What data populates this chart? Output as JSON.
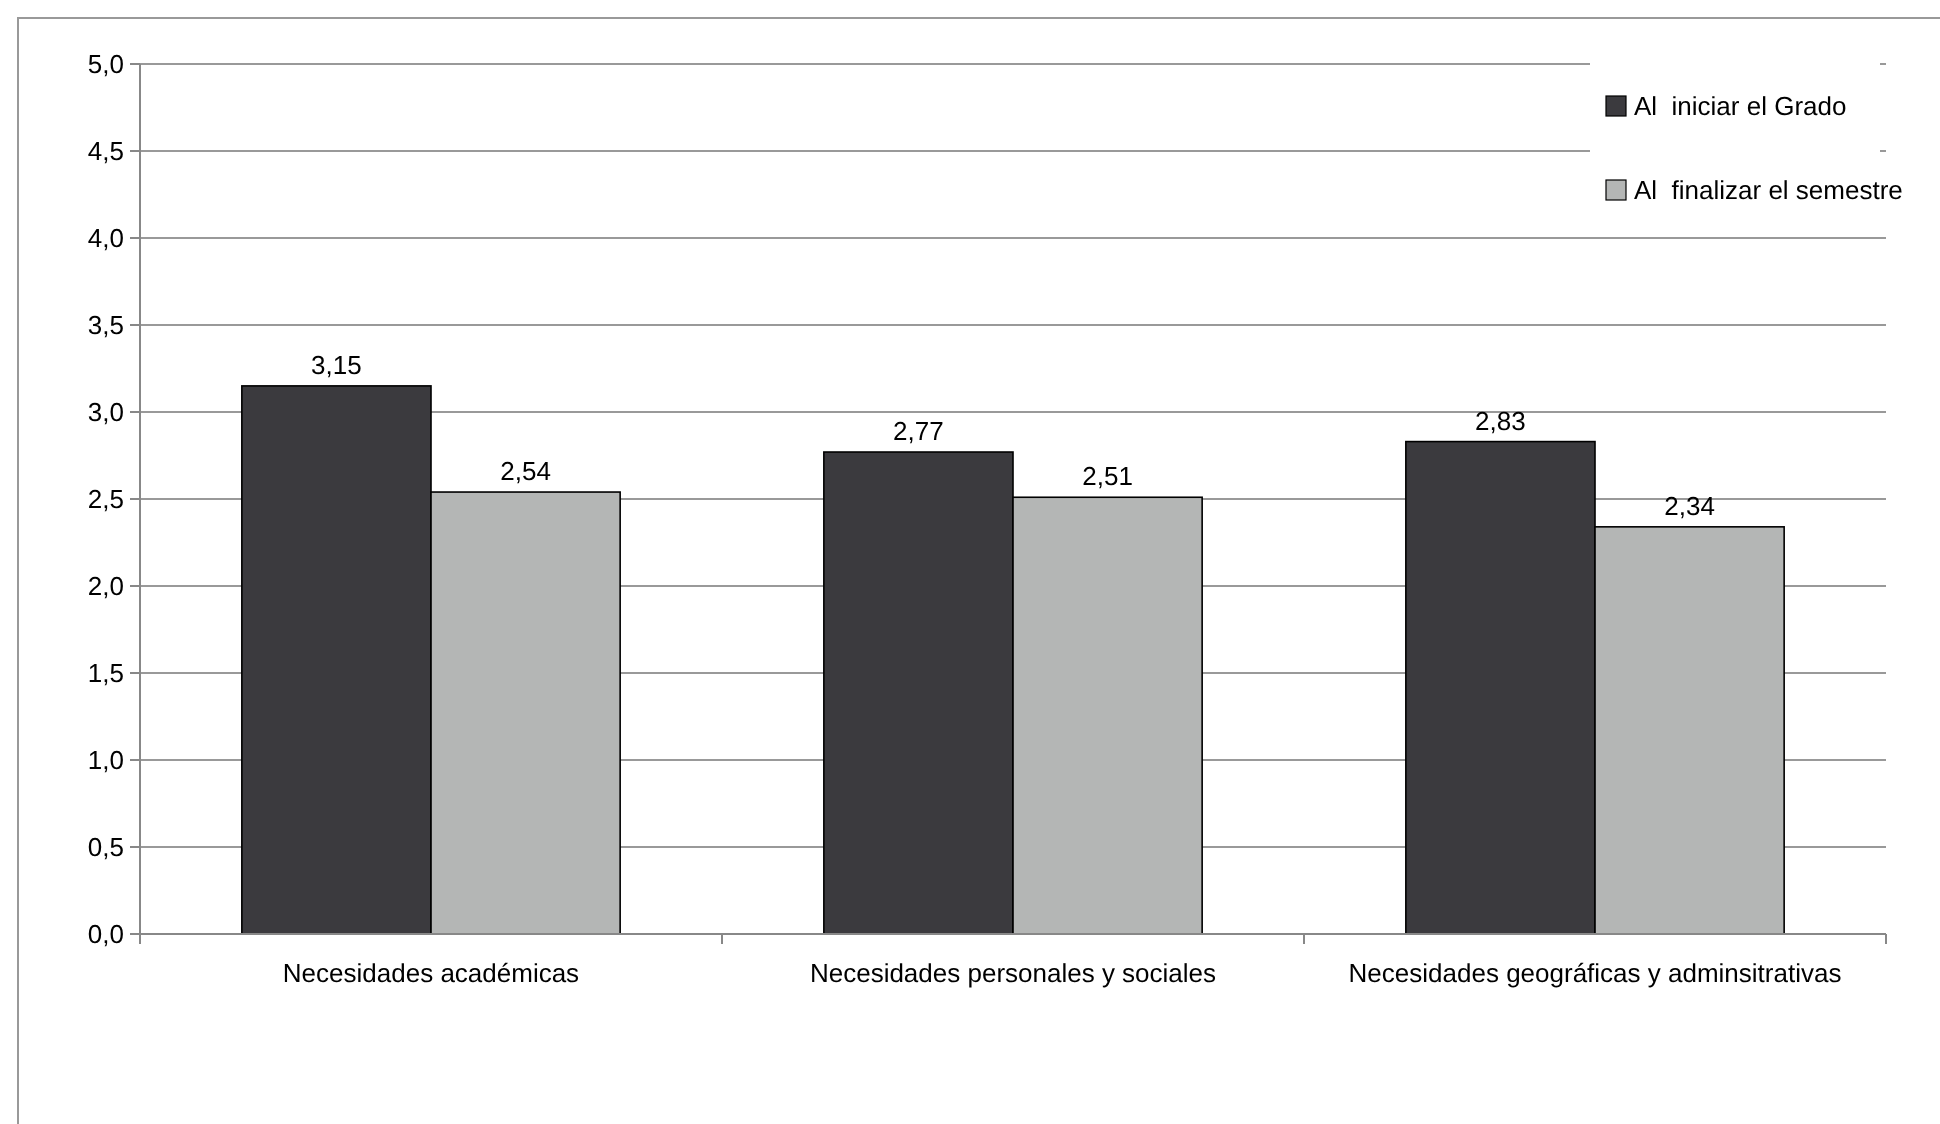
{
  "chart_data": {
    "type": "bar",
    "categories": [
      "Necesidades académicas",
      "Necesidades personales y sociales",
      "Necesidades geográficas y adminsitrativas"
    ],
    "series": [
      {
        "name": "Al  iniciar el Grado",
        "color": "#3b3a3e",
        "values": [
          3.15,
          2.77,
          2.83
        ],
        "value_labels": [
          "3,15",
          "2,77",
          "2,83"
        ]
      },
      {
        "name": "Al  finalizar el semestre",
        "color": "#b4b6b5",
        "values": [
          2.54,
          2.51,
          2.34
        ],
        "value_labels": [
          "2,54",
          "2,51",
          "2,34"
        ]
      }
    ],
    "ylim": [
      0,
      5
    ],
    "yticks": [
      {
        "value": 0,
        "label": "0,0"
      },
      {
        "value": 0.5,
        "label": "0,5"
      },
      {
        "value": 1,
        "label": "1,0"
      },
      {
        "value": 1.5,
        "label": "1,5"
      },
      {
        "value": 2,
        "label": "2,0"
      },
      {
        "value": 2.5,
        "label": "2,5"
      },
      {
        "value": 3,
        "label": "3,0"
      },
      {
        "value": 3.5,
        "label": "3,5"
      },
      {
        "value": 4,
        "label": "4,0"
      },
      {
        "value": 4.5,
        "label": "4,5"
      },
      {
        "value": 5,
        "label": "5,0"
      }
    ],
    "grid": "y",
    "legend": "top right"
  }
}
